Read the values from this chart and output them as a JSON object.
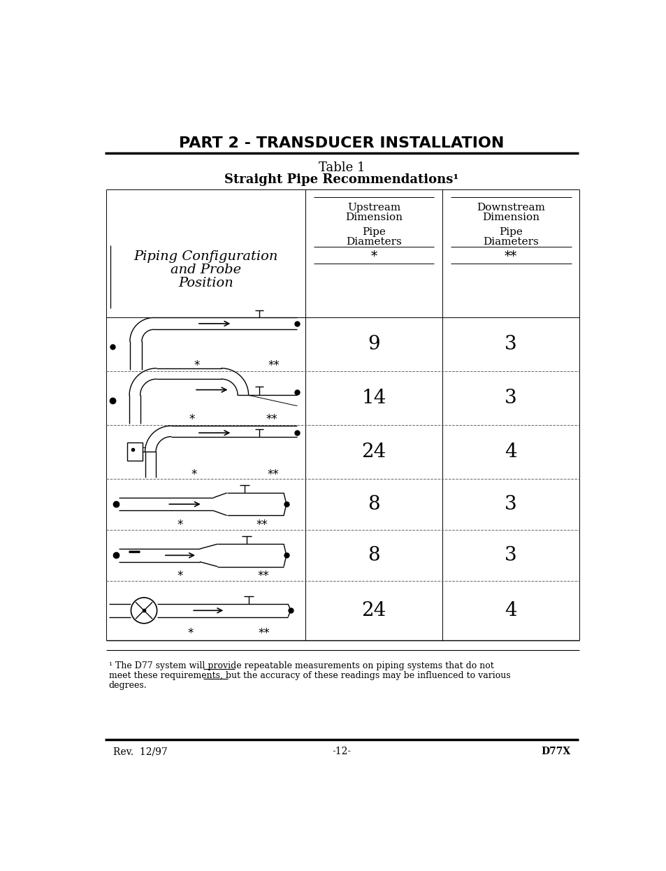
{
  "title_part": "PART 2 - TRANSDUCER INSTALLATION",
  "table_title_line1": "Table 1",
  "table_title_line2": "Straight Pipe Recommendations¹",
  "upstream_values": [
    "9",
    "14",
    "24",
    "8",
    "8",
    "24"
  ],
  "downstream_values": [
    "3",
    "3",
    "4",
    "3",
    "3",
    "4"
  ],
  "footnote_line1": "¹ The D77 system will provide repeatable measurements on piping systems that do not",
  "footnote_line2": "meet these requirements, but the accuracy of these readings may be influenced to various",
  "footnote_line3": "degrees.",
  "footer_left": "Rev.  12/97",
  "footer_center": "-12-",
  "footer_right": "D77X",
  "bg_color": "#ffffff",
  "text_color": "#000000"
}
